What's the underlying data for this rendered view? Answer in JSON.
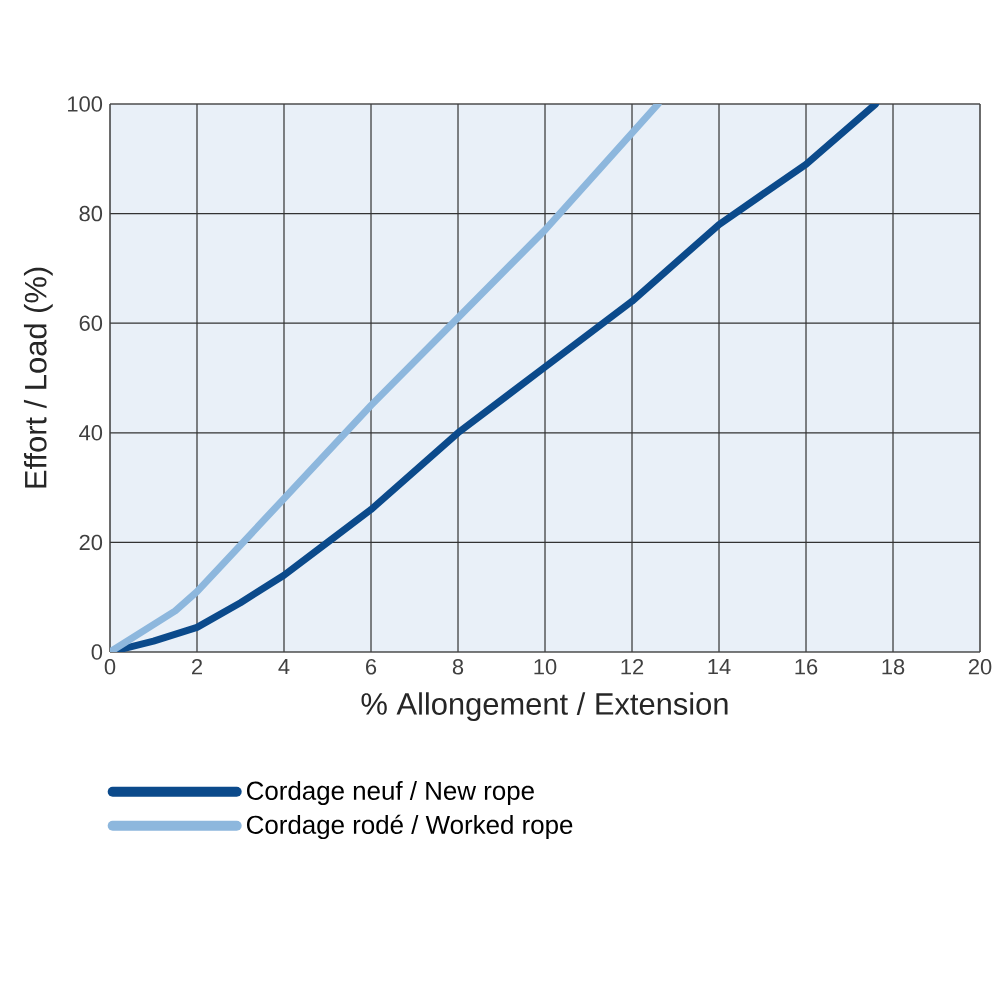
{
  "chart_data": {
    "type": "line",
    "xlabel": "% Allongement / Extension",
    "ylabel": "Effort / Load (%)",
    "xlim": [
      0,
      20
    ],
    "ylim": [
      0,
      100
    ],
    "xticks": [
      0,
      2,
      4,
      6,
      8,
      10,
      12,
      14,
      16,
      18,
      20
    ],
    "yticks": [
      0,
      20,
      40,
      60,
      80,
      100
    ],
    "grid": true,
    "legend": "bottom",
    "series": [
      {
        "name": "Cordage neuf / New rope",
        "color": "#0b4a8b",
        "x": [
          0,
          1,
          2,
          3,
          4,
          5,
          6,
          8,
          10,
          12,
          14,
          16,
          17.6
        ],
        "values": [
          0,
          2,
          4.5,
          9,
          14,
          20,
          26,
          40,
          52,
          64,
          78,
          89,
          100
        ]
      },
      {
        "name": "Cordage rodé / Worked rope",
        "color": "#8db7dd",
        "x": [
          0,
          1.5,
          2,
          4,
          6,
          8,
          10,
          12.6
        ],
        "values": [
          0,
          7.5,
          11,
          28,
          45,
          61,
          77,
          100
        ]
      }
    ]
  }
}
